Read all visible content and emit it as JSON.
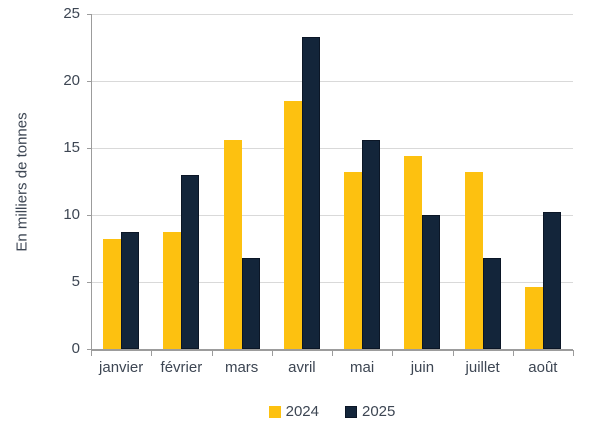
{
  "chart_data": {
    "type": "bar",
    "title": "",
    "ylabel": "En milliers de tonnes",
    "xlabel": "",
    "ylim": [
      0,
      25
    ],
    "yticks": [
      0,
      5,
      10,
      15,
      20,
      25
    ],
    "grid": true,
    "legend_position": "bottom",
    "categories": [
      "janvier",
      "février",
      "mars",
      "avril",
      "mai",
      "juin",
      "juillet",
      "août"
    ],
    "series": [
      {
        "name": "2024",
        "color": "#FDC110",
        "values": [
          8.2,
          8.7,
          15.6,
          18.5,
          13.2,
          14.4,
          13.2,
          4.6
        ]
      },
      {
        "name": "2025",
        "color": "#13253A",
        "border_color": "#0B1626",
        "values": [
          8.7,
          13.0,
          6.8,
          23.3,
          15.6,
          10.0,
          6.8,
          10.2
        ]
      }
    ]
  },
  "style": {
    "axis_color": "#9C9C9C",
    "grid_color": "#D9D9D9",
    "text_color": "#3D4653",
    "background": "#FFFFFF"
  }
}
